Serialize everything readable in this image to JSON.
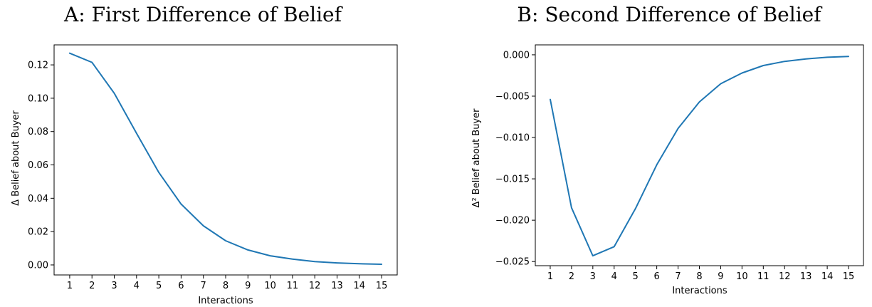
{
  "chart_data": [
    {
      "type": "line",
      "title": "A: First Difference of Belief",
      "xlabel": "Interactions",
      "ylabel": "Δ Belief about Buyer",
      "x": [
        1,
        2,
        3,
        4,
        5,
        6,
        7,
        8,
        9,
        10,
        11,
        12,
        13,
        14,
        15
      ],
      "xlim": [
        0.3,
        15.7
      ],
      "ylim": [
        -0.006,
        0.132
      ],
      "yticks": [
        0.0,
        0.02,
        0.04,
        0.06,
        0.08,
        0.1,
        0.12
      ],
      "ytick_labels": [
        "0.00",
        "0.02",
        "0.04",
        "0.06",
        "0.08",
        "0.10",
        "0.12"
      ],
      "series": [
        {
          "color": "#1f77b4",
          "values": [
            0.127,
            0.1215,
            0.103,
            0.079,
            0.0555,
            0.0365,
            0.0235,
            0.0145,
            0.009,
            0.0055,
            0.0035,
            0.002,
            0.0012,
            0.0007,
            0.0004
          ]
        }
      ],
      "grid": false,
      "legend": "none"
    },
    {
      "type": "line",
      "title": "B: Second Difference of Belief",
      "xlabel": "Interactions",
      "ylabel": "Δ² Belief about Buyer",
      "x": [
        1,
        2,
        3,
        4,
        5,
        6,
        7,
        8,
        9,
        10,
        11,
        12,
        13,
        14,
        15
      ],
      "xlim": [
        0.3,
        15.7
      ],
      "ylim": [
        -0.0255,
        0.0012
      ],
      "yticks": [
        0.0,
        -0.005,
        -0.01,
        -0.015,
        -0.02,
        -0.025
      ],
      "ytick_labels": [
        "0.000",
        "−0.005",
        "−0.010",
        "−0.015",
        "−0.020",
        "−0.025"
      ],
      "series": [
        {
          "color": "#1f77b4",
          "values": [
            -0.0054,
            -0.0185,
            -0.0243,
            -0.0232,
            -0.0186,
            -0.0133,
            -0.0089,
            -0.0057,
            -0.0035,
            -0.0022,
            -0.0013,
            -0.0008,
            -0.0005,
            -0.0003,
            -0.0002
          ]
        }
      ],
      "grid": false,
      "legend": "none"
    }
  ]
}
